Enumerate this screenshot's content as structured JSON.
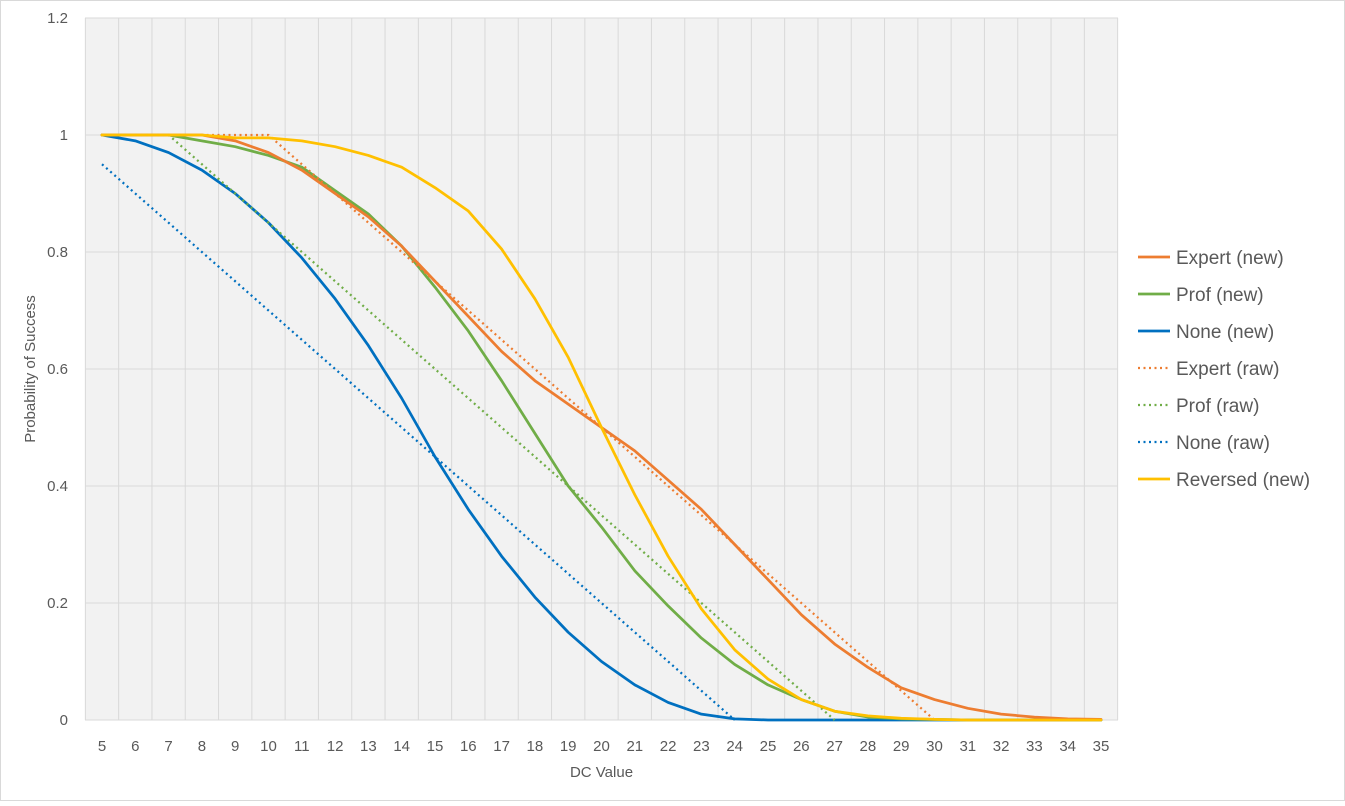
{
  "chart_data": {
    "type": "line",
    "title": "",
    "xlabel": "DC Value",
    "ylabel": "Probability of Success",
    "x": [
      5,
      6,
      7,
      8,
      9,
      10,
      11,
      12,
      13,
      14,
      15,
      16,
      17,
      18,
      19,
      20,
      21,
      22,
      23,
      24,
      25,
      26,
      27,
      28,
      29,
      30,
      31,
      32,
      33,
      34,
      35
    ],
    "xlim": [
      5,
      35
    ],
    "ylim": [
      0,
      1.2
    ],
    "yticks": [
      0,
      0.2,
      0.4,
      0.6,
      0.8,
      1,
      1.2
    ],
    "ytick_labels": [
      "0",
      "0.2",
      "0.4",
      "0.6",
      "0.8",
      "1",
      "1.2"
    ],
    "grid": true,
    "legend_position": "right",
    "series": [
      {
        "name": "Expert (new)",
        "color": "#ED7D31",
        "style": "solid",
        "x": [
          5,
          6,
          7,
          8,
          9,
          10,
          11,
          12,
          13,
          14,
          15,
          16,
          17,
          18,
          19,
          20,
          21,
          22,
          23,
          24,
          25,
          26,
          27,
          28,
          29,
          30,
          31,
          32,
          33,
          34,
          35
        ],
        "values": [
          1,
          1,
          1,
          1,
          0.99,
          0.97,
          0.94,
          0.9,
          0.86,
          0.81,
          0.75,
          0.69,
          0.63,
          0.58,
          0.54,
          0.5,
          0.46,
          0.41,
          0.36,
          0.3,
          0.24,
          0.18,
          0.13,
          0.09,
          0.055,
          0.035,
          0.02,
          0.01,
          0.005,
          0.002,
          0.001
        ]
      },
      {
        "name": "Prof (new)",
        "color": "#70AD47",
        "style": "solid",
        "x": [
          5,
          6,
          7,
          8,
          9,
          10,
          11,
          12,
          13,
          14,
          15,
          16,
          17,
          18,
          19,
          20,
          21,
          22,
          23,
          24,
          25,
          26,
          27,
          28,
          29,
          30,
          31,
          32,
          33,
          34,
          35
        ],
        "values": [
          1,
          1,
          1,
          0.99,
          0.98,
          0.965,
          0.945,
          0.905,
          0.865,
          0.81,
          0.74,
          0.665,
          0.58,
          0.49,
          0.4,
          0.33,
          0.255,
          0.195,
          0.14,
          0.095,
          0.06,
          0.035,
          0.015,
          0.005,
          0.002,
          0.001,
          0,
          0,
          0,
          0,
          0
        ]
      },
      {
        "name": "None (new)",
        "color": "#0070C0",
        "style": "solid",
        "x": [
          5,
          6,
          7,
          8,
          9,
          10,
          11,
          12,
          13,
          14,
          15,
          16,
          17,
          18,
          19,
          20,
          21,
          22,
          23,
          24,
          25,
          26,
          27,
          28,
          29,
          30,
          31,
          32,
          33,
          34,
          35
        ],
        "values": [
          1,
          0.99,
          0.97,
          0.94,
          0.9,
          0.85,
          0.79,
          0.72,
          0.64,
          0.55,
          0.45,
          0.36,
          0.28,
          0.21,
          0.15,
          0.1,
          0.06,
          0.03,
          0.01,
          0.002,
          0,
          0,
          0,
          0,
          0,
          0,
          0,
          0,
          0,
          0,
          0
        ]
      },
      {
        "name": "Expert (raw)",
        "color": "#ED7D31",
        "style": "dotted",
        "x": [
          5,
          10,
          30
        ],
        "values": [
          1,
          1,
          0
        ]
      },
      {
        "name": "Prof (raw)",
        "color": "#70AD47",
        "style": "dotted",
        "x": [
          5,
          7,
          27
        ],
        "values": [
          1,
          1,
          0
        ]
      },
      {
        "name": "None (raw)",
        "color": "#0070C0",
        "style": "dotted",
        "x": [
          5,
          24
        ],
        "values": [
          0.95,
          0
        ]
      },
      {
        "name": "Reversed (new)",
        "color": "#FFC000",
        "style": "solid",
        "x": [
          5,
          6,
          7,
          8,
          9,
          10,
          11,
          12,
          13,
          14,
          15,
          16,
          17,
          18,
          19,
          20,
          21,
          22,
          23,
          24,
          25,
          26,
          27,
          28,
          29,
          30,
          31,
          32,
          33,
          34,
          35
        ],
        "values": [
          1,
          1,
          1,
          1,
          0.995,
          0.995,
          0.99,
          0.98,
          0.965,
          0.945,
          0.91,
          0.87,
          0.805,
          0.72,
          0.62,
          0.5,
          0.385,
          0.28,
          0.19,
          0.12,
          0.07,
          0.035,
          0.015,
          0.007,
          0.003,
          0.001,
          0,
          0,
          0,
          0,
          0
        ]
      }
    ]
  }
}
